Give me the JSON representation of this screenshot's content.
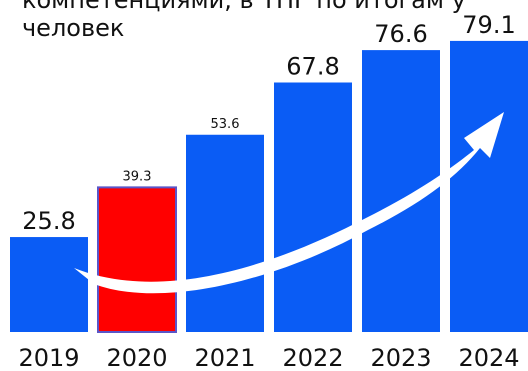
{
  "title": {
    "line1": "компетенциями, в ТНГ по итогам у",
    "line2": "человек"
  },
  "chart_data": {
    "type": "bar",
    "categories": [
      "2019",
      "2020",
      "2021",
      "2022",
      "2023",
      "2024"
    ],
    "values": [
      25.8,
      39.3,
      53.6,
      67.8,
      76.6,
      79.1
    ],
    "value_labels": [
      "25.8",
      "39.3",
      "53.6",
      "67.8",
      "76.6",
      "79.1"
    ],
    "highlight_index": 1,
    "ylim": [
      0,
      85
    ],
    "grid": false,
    "legend": "none",
    "colors": {
      "bar": "#0a5cf5",
      "highlight": "#ff0000",
      "highlight_border": "#5a55c8",
      "arrow": "#ffffff",
      "text": "#111111"
    }
  }
}
